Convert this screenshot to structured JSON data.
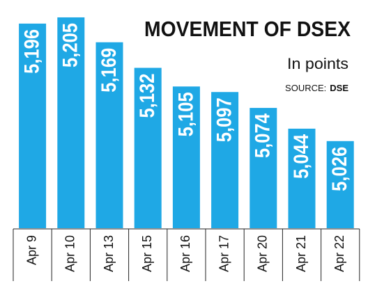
{
  "chart_data": {
    "type": "bar",
    "title": "MOVEMENT OF DSEX",
    "subtitle": "In points",
    "source_label": "SOURCE:",
    "source": "DSE",
    "categories": [
      "Apr 9",
      "Apr 10",
      "Apr 13",
      "Apr 15",
      "Apr 16",
      "Apr 17",
      "Apr 20",
      "Apr 21",
      "Apr 22"
    ],
    "values": [
      5196,
      5205,
      5169,
      5132,
      5105,
      5097,
      5074,
      5044,
      5026
    ],
    "value_labels": [
      "5,196",
      "5,205",
      "5,169",
      "5,132",
      "5,105",
      "5,097",
      "5,074",
      "5,044",
      "5,026"
    ],
    "color": "#1fa8e5",
    "ylim": [
      4900,
      5210
    ]
  }
}
